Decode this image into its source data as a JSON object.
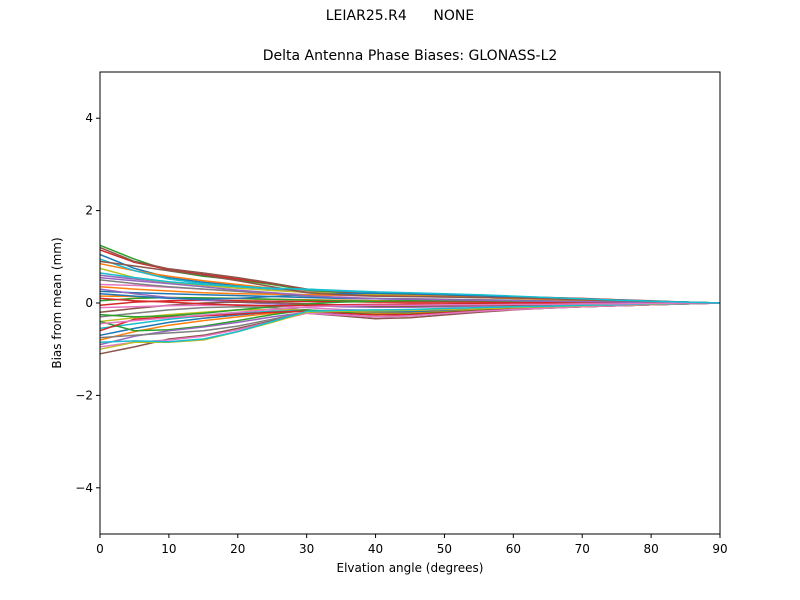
{
  "figure": {
    "suptitle": "LEIAR25.R4      NONE"
  },
  "chart_data": {
    "type": "line",
    "title": "Delta Antenna Phase Biases: GLONASS-L2",
    "xlabel": "Elvation angle (degrees)",
    "ylabel": "Bias from mean (mm)",
    "xlim": [
      0,
      90
    ],
    "ylim": [
      -5,
      5
    ],
    "xticks": [
      0,
      10,
      20,
      30,
      40,
      50,
      60,
      70,
      80,
      90
    ],
    "yticks": [
      -4,
      -2,
      0,
      2,
      4
    ],
    "ytick_labels": [
      "−4",
      "−2",
      "0",
      "2",
      "4"
    ],
    "grid": false,
    "x": [
      0,
      5,
      10,
      15,
      20,
      25,
      30,
      35,
      40,
      45,
      50,
      55,
      60,
      65,
      70,
      75,
      80,
      85,
      90
    ],
    "series": [
      {
        "color": "#1f77b4",
        "values": [
          1.05,
          0.75,
          0.55,
          0.45,
          0.38,
          0.32,
          0.28,
          0.25,
          0.22,
          0.2,
          0.18,
          0.15,
          0.12,
          0.1,
          0.08,
          0.06,
          0.04,
          0.02,
          0.0
        ]
      },
      {
        "color": "#ff7f0e",
        "values": [
          0.85,
          0.7,
          0.58,
          0.48,
          0.4,
          0.32,
          0.26,
          0.22,
          0.19,
          0.17,
          0.15,
          0.13,
          0.11,
          0.09,
          0.07,
          0.05,
          0.03,
          0.01,
          0.0
        ]
      },
      {
        "color": "#2ca02c",
        "values": [
          1.25,
          0.95,
          0.7,
          0.58,
          0.5,
          0.4,
          0.28,
          0.22,
          0.2,
          0.18,
          0.16,
          0.14,
          0.12,
          0.1,
          0.08,
          0.06,
          0.04,
          0.02,
          0.0
        ]
      },
      {
        "color": "#d62728",
        "values": [
          1.15,
          0.88,
          0.72,
          0.62,
          0.52,
          0.42,
          0.3,
          0.25,
          0.22,
          0.2,
          0.18,
          0.16,
          0.14,
          0.12,
          0.1,
          0.07,
          0.04,
          0.02,
          0.0
        ]
      },
      {
        "color": "#9467bd",
        "values": [
          0.6,
          0.52,
          0.45,
          0.4,
          0.35,
          0.3,
          0.24,
          0.2,
          0.18,
          0.16,
          0.14,
          0.12,
          0.1,
          0.08,
          0.06,
          0.04,
          0.03,
          0.01,
          0.0
        ]
      },
      {
        "color": "#8c564b",
        "values": [
          1.2,
          0.9,
          0.74,
          0.65,
          0.55,
          0.43,
          0.3,
          0.24,
          0.21,
          0.19,
          0.17,
          0.15,
          0.13,
          0.11,
          0.09,
          0.07,
          0.05,
          0.02,
          0.0
        ]
      },
      {
        "color": "#e377c2",
        "values": [
          0.4,
          0.38,
          0.34,
          0.3,
          0.26,
          0.22,
          0.18,
          0.16,
          0.15,
          0.14,
          0.13,
          0.12,
          0.1,
          0.08,
          0.06,
          0.05,
          0.03,
          0.01,
          0.0
        ]
      },
      {
        "color": "#7f7f7f",
        "values": [
          0.5,
          0.42,
          0.35,
          0.3,
          0.25,
          0.2,
          0.15,
          0.12,
          0.1,
          0.09,
          0.08,
          0.07,
          0.06,
          0.05,
          0.04,
          0.03,
          0.02,
          0.01,
          0.0
        ]
      },
      {
        "color": "#bcbd22",
        "values": [
          0.75,
          0.55,
          0.45,
          0.38,
          0.32,
          0.27,
          0.23,
          0.2,
          0.18,
          0.16,
          0.14,
          0.12,
          0.1,
          0.08,
          0.06,
          0.04,
          0.03,
          0.01,
          0.0
        ]
      },
      {
        "color": "#17becf",
        "values": [
          0.95,
          0.7,
          0.52,
          0.42,
          0.35,
          0.31,
          0.29,
          0.26,
          0.23,
          0.21,
          0.19,
          0.17,
          0.14,
          0.11,
          0.08,
          0.06,
          0.04,
          0.02,
          0.0
        ]
      },
      {
        "color": "#1f77b4",
        "values": [
          0.25,
          0.22,
          0.2,
          0.18,
          0.16,
          0.14,
          0.12,
          0.1,
          0.09,
          0.08,
          0.07,
          0.06,
          0.05,
          0.04,
          0.03,
          0.02,
          0.01,
          0.0,
          0.0
        ]
      },
      {
        "color": "#ff7f0e",
        "values": [
          0.15,
          0.14,
          0.12,
          0.1,
          0.09,
          0.08,
          0.07,
          0.06,
          0.05,
          0.05,
          0.04,
          0.04,
          0.03,
          0.03,
          0.02,
          0.02,
          0.01,
          0.0,
          0.0
        ]
      },
      {
        "color": "#2ca02c",
        "values": [
          0.05,
          0.1,
          0.12,
          0.11,
          0.1,
          0.08,
          0.06,
          0.05,
          0.04,
          0.04,
          0.03,
          0.03,
          0.03,
          0.02,
          0.02,
          0.01,
          0.01,
          0.0,
          0.0
        ]
      },
      {
        "color": "#d62728",
        "values": [
          -0.05,
          0.02,
          0.05,
          0.06,
          0.05,
          0.04,
          0.03,
          0.03,
          0.02,
          0.02,
          0.02,
          0.02,
          0.01,
          0.01,
          0.01,
          0.01,
          0.0,
          0.0,
          0.0
        ]
      },
      {
        "color": "#9467bd",
        "values": [
          0.3,
          0.2,
          0.12,
          0.06,
          0.02,
          -0.02,
          -0.05,
          -0.08,
          -0.09,
          -0.09,
          -0.08,
          -0.07,
          -0.06,
          -0.05,
          -0.04,
          -0.03,
          -0.02,
          -0.01,
          0.0
        ]
      },
      {
        "color": "#8c564b",
        "values": [
          -0.2,
          -0.12,
          -0.05,
          0.0,
          0.02,
          0.01,
          -0.02,
          -0.05,
          -0.07,
          -0.07,
          -0.06,
          -0.05,
          -0.05,
          -0.04,
          -0.03,
          -0.02,
          -0.01,
          0.0,
          0.0
        ]
      },
      {
        "color": "#e377c2",
        "values": [
          -0.1,
          -0.08,
          -0.06,
          -0.05,
          -0.04,
          -0.06,
          -0.1,
          -0.14,
          -0.16,
          -0.15,
          -0.13,
          -0.11,
          -0.09,
          -0.07,
          -0.05,
          -0.04,
          -0.02,
          -0.01,
          0.0
        ]
      },
      {
        "color": "#7f7f7f",
        "values": [
          -0.3,
          -0.22,
          -0.15,
          -0.1,
          -0.08,
          -0.1,
          -0.15,
          -0.2,
          -0.22,
          -0.21,
          -0.18,
          -0.15,
          -0.12,
          -0.09,
          -0.07,
          -0.05,
          -0.03,
          -0.01,
          0.0
        ]
      },
      {
        "color": "#bcbd22",
        "values": [
          -0.4,
          -0.32,
          -0.25,
          -0.2,
          -0.15,
          -0.14,
          -0.16,
          -0.19,
          -0.2,
          -0.19,
          -0.17,
          -0.14,
          -0.11,
          -0.09,
          -0.07,
          -0.05,
          -0.03,
          -0.01,
          0.0
        ]
      },
      {
        "color": "#17becf",
        "values": [
          -0.55,
          -0.45,
          -0.35,
          -0.28,
          -0.22,
          -0.18,
          -0.17,
          -0.18,
          -0.18,
          -0.17,
          -0.15,
          -0.13,
          -0.11,
          -0.09,
          -0.07,
          -0.05,
          -0.03,
          -0.01,
          0.0
        ]
      },
      {
        "color": "#1f77b4",
        "values": [
          -0.7,
          -0.55,
          -0.42,
          -0.33,
          -0.26,
          -0.2,
          -0.16,
          -0.17,
          -0.19,
          -0.19,
          -0.17,
          -0.14,
          -0.11,
          -0.09,
          -0.07,
          -0.05,
          -0.03,
          -0.01,
          0.0
        ]
      },
      {
        "color": "#ff7f0e",
        "values": [
          -0.8,
          -0.62,
          -0.48,
          -0.38,
          -0.3,
          -0.22,
          -0.17,
          -0.2,
          -0.23,
          -0.22,
          -0.19,
          -0.15,
          -0.12,
          -0.1,
          -0.08,
          -0.06,
          -0.04,
          -0.02,
          0.0
        ]
      },
      {
        "color": "#2ca02c",
        "values": [
          -0.4,
          -0.6,
          -0.58,
          -0.5,
          -0.38,
          -0.25,
          -0.15,
          -0.2,
          -0.25,
          -0.24,
          -0.2,
          -0.16,
          -0.13,
          -0.1,
          -0.08,
          -0.06,
          -0.04,
          -0.02,
          0.0
        ]
      },
      {
        "color": "#d62728",
        "values": [
          -0.6,
          -0.35,
          -0.3,
          -0.28,
          -0.24,
          -0.2,
          -0.18,
          -0.22,
          -0.26,
          -0.25,
          -0.21,
          -0.17,
          -0.13,
          -0.1,
          -0.08,
          -0.06,
          -0.04,
          -0.02,
          0.0
        ]
      },
      {
        "color": "#9467bd",
        "values": [
          -0.9,
          -0.72,
          -0.6,
          -0.52,
          -0.42,
          -0.3,
          -0.2,
          -0.25,
          -0.3,
          -0.28,
          -0.23,
          -0.18,
          -0.14,
          -0.11,
          -0.08,
          -0.06,
          -0.04,
          -0.02,
          0.0
        ]
      },
      {
        "color": "#8c564b",
        "values": [
          -1.1,
          -0.95,
          -0.78,
          -0.7,
          -0.55,
          -0.38,
          -0.22,
          -0.28,
          -0.34,
          -0.32,
          -0.26,
          -0.2,
          -0.15,
          -0.11,
          -0.08,
          -0.06,
          -0.04,
          -0.02,
          0.0
        ]
      },
      {
        "color": "#e377c2",
        "values": [
          -0.95,
          -0.85,
          -0.8,
          -0.72,
          -0.58,
          -0.4,
          -0.22,
          -0.26,
          -0.3,
          -0.28,
          -0.23,
          -0.18,
          -0.14,
          -0.11,
          -0.08,
          -0.06,
          -0.04,
          -0.02,
          0.0
        ]
      },
      {
        "color": "#7f7f7f",
        "values": [
          -0.75,
          -0.7,
          -0.65,
          -0.6,
          -0.5,
          -0.35,
          -0.2,
          -0.18,
          -0.16,
          -0.15,
          -0.13,
          -0.11,
          -0.09,
          -0.07,
          -0.05,
          -0.04,
          -0.02,
          -0.01,
          0.0
        ]
      },
      {
        "color": "#bcbd22",
        "values": [
          -1.0,
          -0.85,
          -0.85,
          -0.8,
          -0.62,
          -0.42,
          -0.2,
          -0.18,
          -0.17,
          -0.16,
          -0.14,
          -0.12,
          -0.1,
          -0.08,
          -0.06,
          -0.04,
          -0.03,
          -0.01,
          0.0
        ]
      },
      {
        "color": "#17becf",
        "values": [
          -0.85,
          -0.82,
          -0.84,
          -0.78,
          -0.62,
          -0.4,
          -0.18,
          -0.16,
          -0.15,
          -0.14,
          -0.12,
          -0.1,
          -0.08,
          -0.07,
          -0.05,
          -0.04,
          -0.02,
          -0.01,
          0.0
        ]
      },
      {
        "color": "#1f77b4",
        "values": [
          0.2,
          0.15,
          0.1,
          0.08,
          0.1,
          0.14,
          0.18,
          0.2,
          0.21,
          0.2,
          0.18,
          0.16,
          0.13,
          0.1,
          0.08,
          0.06,
          0.04,
          0.02,
          0.0
        ]
      },
      {
        "color": "#ff7f0e",
        "values": [
          0.35,
          0.3,
          0.26,
          0.22,
          0.2,
          0.19,
          0.18,
          0.17,
          0.16,
          0.15,
          0.14,
          0.12,
          0.1,
          0.08,
          0.06,
          0.05,
          0.03,
          0.01,
          0.0
        ]
      },
      {
        "color": "#2ca02c",
        "values": [
          -0.25,
          -0.3,
          -0.28,
          -0.22,
          -0.15,
          -0.08,
          -0.02,
          0.02,
          0.04,
          0.05,
          0.05,
          0.05,
          0.04,
          0.04,
          0.03,
          0.02,
          0.01,
          0.0,
          0.0
        ]
      },
      {
        "color": "#d62728",
        "values": [
          0.1,
          0.05,
          0.02,
          -0.02,
          -0.05,
          -0.06,
          -0.05,
          -0.04,
          -0.03,
          -0.02,
          -0.02,
          -0.01,
          -0.01,
          -0.01,
          0.0,
          0.0,
          0.0,
          0.0,
          0.0
        ]
      },
      {
        "color": "#9467bd",
        "values": [
          0.55,
          0.48,
          0.42,
          0.35,
          0.28,
          0.22,
          0.16,
          0.12,
          0.09,
          0.08,
          0.07,
          0.06,
          0.05,
          0.04,
          0.03,
          0.02,
          0.01,
          0.0,
          0.0
        ]
      },
      {
        "color": "#8c564b",
        "values": [
          0.9,
          0.8,
          0.7,
          0.6,
          0.48,
          0.35,
          0.22,
          0.18,
          0.15,
          0.14,
          0.13,
          0.12,
          0.11,
          0.09,
          0.07,
          0.05,
          0.03,
          0.01,
          0.0
        ]
      },
      {
        "color": "#e377c2",
        "values": [
          -0.45,
          -0.38,
          -0.32,
          -0.26,
          -0.2,
          -0.14,
          -0.08,
          -0.06,
          -0.05,
          -0.05,
          -0.04,
          -0.04,
          -0.03,
          -0.03,
          -0.02,
          -0.02,
          -0.01,
          0.0,
          0.0
        ]
      },
      {
        "color": "#17becf",
        "values": [
          0.65,
          0.55,
          0.46,
          0.4,
          0.36,
          0.32,
          0.3,
          0.27,
          0.24,
          0.22,
          0.2,
          0.18,
          0.15,
          0.12,
          0.09,
          0.06,
          0.04,
          0.02,
          0.0
        ]
      }
    ]
  }
}
